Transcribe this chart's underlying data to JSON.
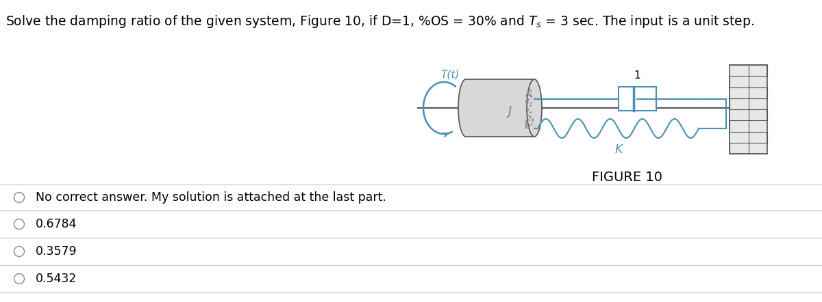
{
  "title_prefix": "Solve the damping ratio of the given system, Figure 10, if D=1, %OS = 30% and T",
  "title_sub": "s",
  "title_suffix": " = 3 sec. The input is a unit step.",
  "figure_label": "FIGURE 10",
  "diagram_label_T": "T(t)",
  "diagram_label_J": "J",
  "diagram_label_K": "K",
  "diagram_label_1": "1",
  "options": [
    "No correct answer. My solution is attached at the last part.",
    "0.6784",
    "0.3579",
    "0.5432"
  ],
  "bg_color": "#ffffff",
  "text_color": "#000000",
  "line_color": "#4a8db5",
  "diagram_gray": "#a0a0a0",
  "diagram_dark": "#555555",
  "title_fontsize": 13.5,
  "option_fontsize": 12.5,
  "figure_label_fontsize": 14,
  "diagram_label_fontsize": 11,
  "divider_color": "#cccccc",
  "cylinder_face": "#d8d8d8",
  "wall_face": "#c8c8c8"
}
